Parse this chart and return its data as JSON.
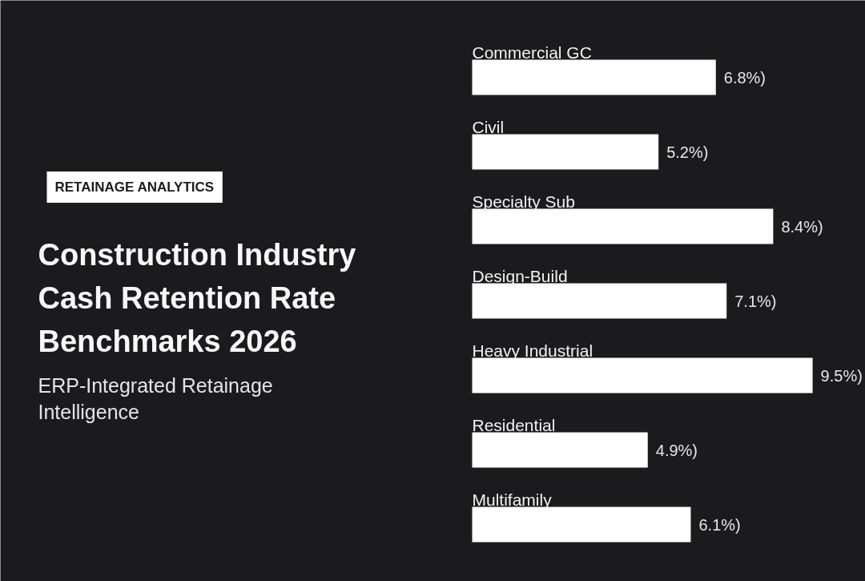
{
  "chart_data": {
    "type": "bar",
    "orientation": "horizontal",
    "title": "Construction Industry Cash Retention Rate Benchmarks 2026",
    "subtitle": "ERP-Integrated Retainage Intelligence",
    "annotations": [
      "RETAINAGE ANALYTICS"
    ],
    "categories": [
      "Commercial GC",
      "Civil",
      "Specialty Sub",
      "Design-Build",
      "Heavy Industrial",
      "Residential",
      "Multifamily"
    ],
    "values": [
      6.8,
      5.2,
      8.4,
      7.1,
      9.5,
      4.9,
      6.1
    ],
    "color": "#ffffff",
    "value_labels": [
      "6.8%)",
      "5.2%)",
      "8.4%)",
      "7.1%)",
      "9.5%)",
      "4.9%)",
      "6.1%)"
    ]
  }
}
